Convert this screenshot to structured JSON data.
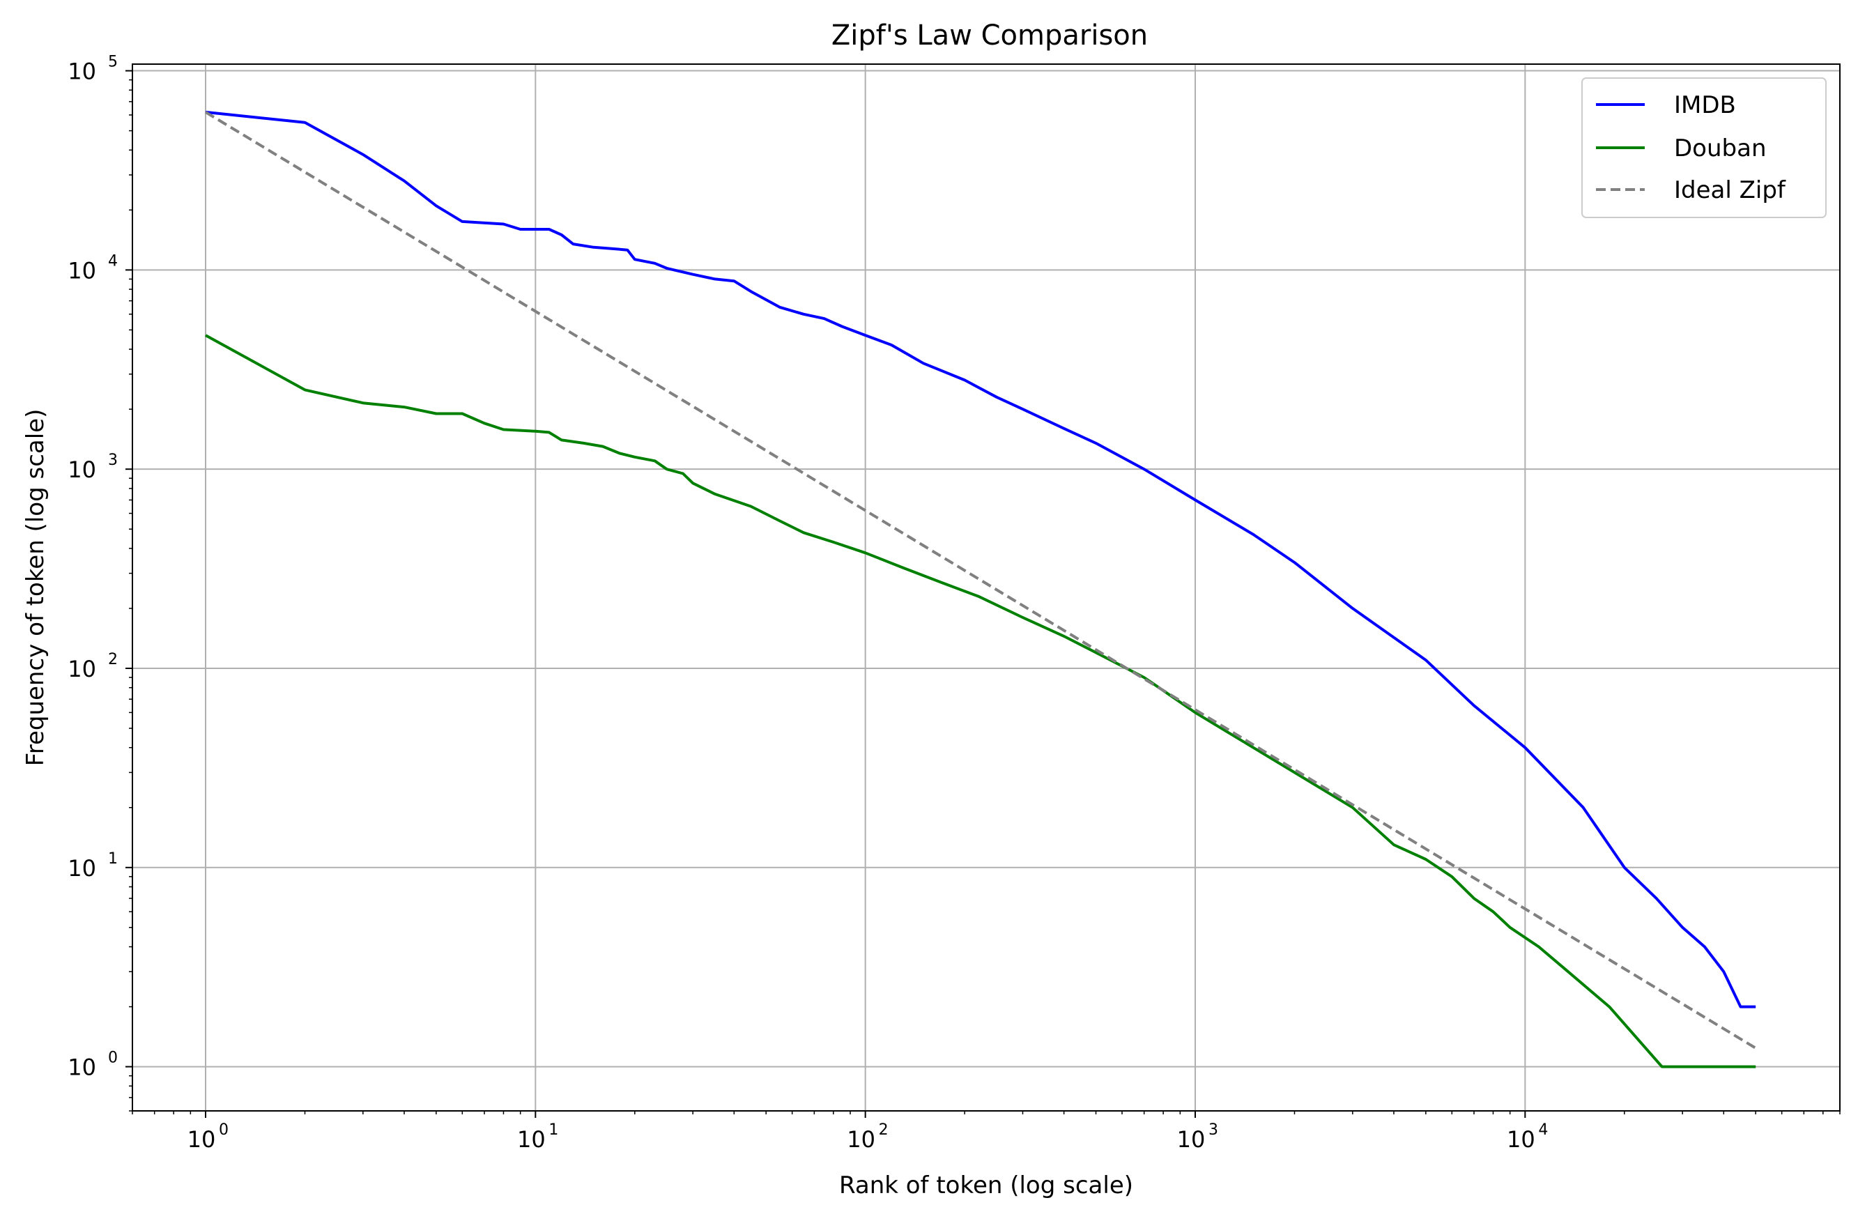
{
  "chart_data": {
    "type": "line",
    "title": "Zipf's Law Comparison",
    "xlabel": "Rank of token (log scale)",
    "ylabel": "Frequency of token (log scale)",
    "x_scale": "log",
    "y_scale": "log",
    "xlim": [
      0.6,
      90000
    ],
    "ylim": [
      0.6,
      108000
    ],
    "x_ticks": [
      {
        "value": 1,
        "base": "10",
        "exp": "0"
      },
      {
        "value": 10,
        "base": "10",
        "exp": "1"
      },
      {
        "value": 100,
        "base": "10",
        "exp": "2"
      },
      {
        "value": 1000,
        "base": "10",
        "exp": "3"
      },
      {
        "value": 10000,
        "base": "10",
        "exp": "4"
      }
    ],
    "y_ticks": [
      {
        "value": 1,
        "base": "10",
        "exp": "0"
      },
      {
        "value": 10,
        "base": "10",
        "exp": "1"
      },
      {
        "value": 100,
        "base": "10",
        "exp": "2"
      },
      {
        "value": 1000,
        "base": "10",
        "exp": "3"
      },
      {
        "value": 10000,
        "base": "10",
        "exp": "4"
      },
      {
        "value": 100000,
        "base": "10",
        "exp": "5"
      }
    ],
    "grid": true,
    "legend_position": "top-right",
    "series": [
      {
        "name": "IMDB",
        "color": "#0000ff",
        "style": "solid",
        "points": [
          [
            1,
            62000
          ],
          [
            2,
            55000
          ],
          [
            3,
            38000
          ],
          [
            4,
            28000
          ],
          [
            5,
            21000
          ],
          [
            6,
            17500
          ],
          [
            8,
            17000
          ],
          [
            9,
            16000
          ],
          [
            11,
            16000
          ],
          [
            12,
            15000
          ],
          [
            13,
            13500
          ],
          [
            15,
            13000
          ],
          [
            17,
            12800
          ],
          [
            19,
            12600
          ],
          [
            20,
            11300
          ],
          [
            23,
            10800
          ],
          [
            25,
            10200
          ],
          [
            30,
            9500
          ],
          [
            35,
            9000
          ],
          [
            40,
            8800
          ],
          [
            45,
            7800
          ],
          [
            55,
            6500
          ],
          [
            65,
            6000
          ],
          [
            75,
            5700
          ],
          [
            85,
            5200
          ],
          [
            100,
            4700
          ],
          [
            120,
            4200
          ],
          [
            150,
            3400
          ],
          [
            200,
            2800
          ],
          [
            250,
            2300
          ],
          [
            300,
            2000
          ],
          [
            400,
            1600
          ],
          [
            500,
            1350
          ],
          [
            700,
            1000
          ],
          [
            1000,
            700
          ],
          [
            1500,
            470
          ],
          [
            2000,
            340
          ],
          [
            3000,
            200
          ],
          [
            5000,
            110
          ],
          [
            7000,
            65
          ],
          [
            10000,
            40
          ],
          [
            15000,
            20
          ],
          [
            20000,
            10
          ],
          [
            25000,
            7
          ],
          [
            30000,
            5
          ],
          [
            35000,
            4
          ],
          [
            40000,
            3
          ],
          [
            45000,
            2
          ],
          [
            50000,
            2
          ]
        ]
      },
      {
        "name": "Douban",
        "color": "#008000",
        "style": "solid",
        "points": [
          [
            1,
            4700
          ],
          [
            2,
            2500
          ],
          [
            3,
            2150
          ],
          [
            4,
            2050
          ],
          [
            5,
            1900
          ],
          [
            6,
            1900
          ],
          [
            7,
            1700
          ],
          [
            8,
            1580
          ],
          [
            10,
            1550
          ],
          [
            11,
            1530
          ],
          [
            12,
            1400
          ],
          [
            14,
            1350
          ],
          [
            16,
            1300
          ],
          [
            18,
            1200
          ],
          [
            20,
            1150
          ],
          [
            23,
            1100
          ],
          [
            25,
            1000
          ],
          [
            28,
            950
          ],
          [
            30,
            850
          ],
          [
            35,
            750
          ],
          [
            45,
            650
          ],
          [
            55,
            550
          ],
          [
            65,
            480
          ],
          [
            80,
            430
          ],
          [
            100,
            380
          ],
          [
            130,
            320
          ],
          [
            170,
            270
          ],
          [
            220,
            230
          ],
          [
            300,
            180
          ],
          [
            400,
            145
          ],
          [
            500,
            120
          ],
          [
            700,
            90
          ],
          [
            1000,
            60
          ],
          [
            1500,
            40
          ],
          [
            2000,
            30
          ],
          [
            3000,
            20
          ],
          [
            4000,
            13
          ],
          [
            5000,
            11
          ],
          [
            6000,
            9
          ],
          [
            7000,
            7
          ],
          [
            8000,
            6
          ],
          [
            9000,
            5
          ],
          [
            11000,
            4
          ],
          [
            13500,
            3
          ],
          [
            18000,
            2
          ],
          [
            26000,
            1
          ],
          [
            50000,
            1
          ]
        ]
      },
      {
        "name": "Ideal Zipf",
        "color": "#808080",
        "style": "dashed",
        "points": [
          [
            1,
            62000
          ],
          [
            50000,
            1.24
          ]
        ]
      }
    ]
  }
}
